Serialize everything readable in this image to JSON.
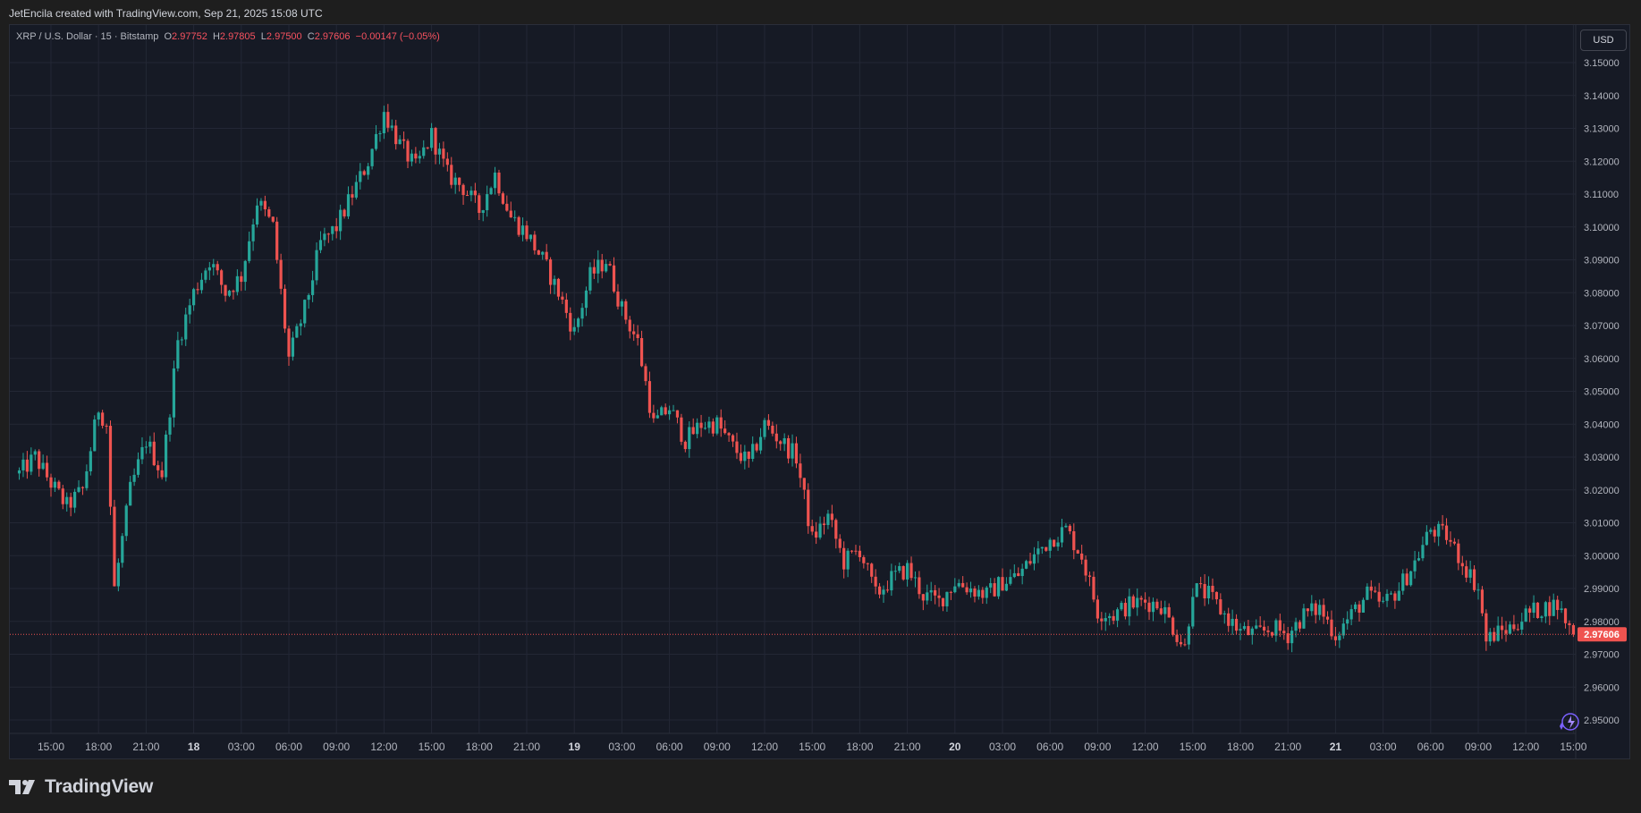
{
  "header": {
    "attribution": "JetEncila created with TradingView.com, Sep 21, 2025 15:08 UTC"
  },
  "legend": {
    "symbol": "XRP / U.S. Dollar · 15 · Bitstamp",
    "o_label": "O",
    "o": "2.97752",
    "h_label": "H",
    "h": "2.97805",
    "l_label": "L",
    "l": "2.97500",
    "c_label": "C",
    "c": "2.97606",
    "change": "−0.00147 (−0.05%)"
  },
  "currency_button": "USD",
  "brand": {
    "name": "TradingView"
  },
  "icons": {
    "logo": "tradingview-logo-icon",
    "assistant": "sparkle-icon"
  },
  "colors": {
    "up": "#26a69a",
    "down": "#ef5350",
    "background": "#161a25",
    "grid": "#232735",
    "axis_text": "#b2b5be",
    "last_price": "#ef5350"
  },
  "chart_data": {
    "type": "candlestick",
    "interval_minutes": 15,
    "y_axis_labels": [
      "3.15000",
      "3.14000",
      "3.13000",
      "3.12000",
      "3.11000",
      "3.10000",
      "3.09000",
      "3.08000",
      "3.07000",
      "3.06000",
      "3.05000",
      "3.04000",
      "3.03000",
      "3.02000",
      "3.01000",
      "3.00000",
      "2.99000",
      "2.98000",
      "2.97000",
      "2.96000",
      "2.95000"
    ],
    "ylim": [
      2.945,
      3.152
    ],
    "x_tick_labels": [
      "15:00",
      "18:00",
      "21:00",
      "18",
      "03:00",
      "06:00",
      "09:00",
      "12:00",
      "15:00",
      "18:00",
      "21:00",
      "19",
      "03:00",
      "06:00",
      "09:00",
      "12:00",
      "15:00",
      "18:00",
      "21:00",
      "20",
      "03:00",
      "06:00",
      "09:00",
      "12:00",
      "15:00",
      "18:00",
      "21:00",
      "21",
      "03:00",
      "06:00",
      "09:00",
      "12:00",
      "15:00"
    ],
    "last_price": "2.97606",
    "grid": true,
    "price_path": [
      [
        "Sep 17 13:00",
        3.025
      ],
      [
        "Sep 17 14:00",
        3.03
      ],
      [
        "Sep 17 15:00",
        3.022
      ],
      [
        "Sep 17 16:00",
        3.015
      ],
      [
        "Sep 17 17:00",
        3.02
      ],
      [
        "Sep 17 18:00",
        3.045
      ],
      [
        "Sep 17 18:30",
        3.04
      ],
      [
        "Sep 17 19:00",
        2.99
      ],
      [
        "Sep 17 20:00",
        3.02
      ],
      [
        "Sep 17 21:00",
        3.035
      ],
      [
        "Sep 17 22:00",
        3.025
      ],
      [
        "Sep 17 23:00",
        3.065
      ],
      [
        "Sep 18 00:00",
        3.08
      ],
      [
        "Sep 18 01:00",
        3.09
      ],
      [
        "Sep 18 02:00",
        3.08
      ],
      [
        "Sep 18 03:00",
        3.085
      ],
      [
        "Sep 18 04:00",
        3.108
      ],
      [
        "Sep 18 05:00",
        3.1
      ],
      [
        "Sep 18 06:00",
        3.06
      ],
      [
        "Sep 18 07:00",
        3.075
      ],
      [
        "Sep 18 08:00",
        3.095
      ],
      [
        "Sep 18 09:00",
        3.1
      ],
      [
        "Sep 18 10:00",
        3.11
      ],
      [
        "Sep 18 11:00",
        3.12
      ],
      [
        "Sep 18 12:00",
        3.135
      ],
      [
        "Sep 18 13:00",
        3.125
      ],
      [
        "Sep 18 14:00",
        3.118
      ],
      [
        "Sep 18 15:00",
        3.128
      ],
      [
        "Sep 18 16:00",
        3.116
      ],
      [
        "Sep 18 17:00",
        3.112
      ],
      [
        "Sep 18 18:00",
        3.105
      ],
      [
        "Sep 18 19:00",
        3.116
      ],
      [
        "Sep 18 20:00",
        3.103
      ],
      [
        "Sep 18 21:00",
        3.098
      ],
      [
        "Sep 18 22:00",
        3.09
      ],
      [
        "Sep 18 23:00",
        3.08
      ],
      [
        "Sep 19 00:00",
        3.068
      ],
      [
        "Sep 19 01:00",
        3.085
      ],
      [
        "Sep 19 02:00",
        3.09
      ],
      [
        "Sep 19 03:00",
        3.075
      ],
      [
        "Sep 19 04:00",
        3.065
      ],
      [
        "Sep 19 05:00",
        3.04
      ],
      [
        "Sep 19 06:00",
        3.045
      ],
      [
        "Sep 19 07:00",
        3.035
      ],
      [
        "Sep 19 08:00",
        3.04
      ],
      [
        "Sep 19 09:00",
        3.04
      ],
      [
        "Sep 19 10:00",
        3.033
      ],
      [
        "Sep 19 11:00",
        3.028
      ],
      [
        "Sep 19 12:00",
        3.04
      ],
      [
        "Sep 19 13:00",
        3.035
      ],
      [
        "Sep 19 14:00",
        3.03
      ],
      [
        "Sep 19 15:00",
        3.005
      ],
      [
        "Sep 19 16:00",
        3.012
      ],
      [
        "Sep 19 17:00",
        2.998
      ],
      [
        "Sep 19 18:00",
        3.002
      ],
      [
        "Sep 19 19:00",
        2.988
      ],
      [
        "Sep 19 20:00",
        2.993
      ],
      [
        "Sep 19 21:00",
        2.996
      ],
      [
        "Sep 19 22:00",
        2.988
      ],
      [
        "Sep 19 23:00",
        2.986
      ],
      [
        "Sep 20 00:00",
        2.992
      ],
      [
        "Sep 20 01:00",
        2.99
      ],
      [
        "Sep 20 02:00",
        2.988
      ],
      [
        "Sep 20 03:00",
        2.992
      ],
      [
        "Sep 20 04:00",
        2.994
      ],
      [
        "Sep 20 05:00",
        3.0
      ],
      [
        "Sep 20 06:00",
        3.005
      ],
      [
        "Sep 20 07:00",
        3.008
      ],
      [
        "Sep 20 08:00",
        3.0
      ],
      [
        "Sep 20 09:00",
        2.983
      ],
      [
        "Sep 20 10:00",
        2.982
      ],
      [
        "Sep 20 11:00",
        2.985
      ],
      [
        "Sep 20 12:00",
        2.986
      ],
      [
        "Sep 20 13:00",
        2.985
      ],
      [
        "Sep 20 14:00",
        2.976
      ],
      [
        "Sep 20 14:30",
        2.972
      ],
      [
        "Sep 20 15:00",
        2.99
      ],
      [
        "Sep 20 16:00",
        2.988
      ],
      [
        "Sep 20 17:00",
        2.982
      ],
      [
        "Sep 20 18:00",
        2.977
      ],
      [
        "Sep 20 19:00",
        2.976
      ],
      [
        "Sep 20 20:00",
        2.978
      ],
      [
        "Sep 20 21:00",
        2.976
      ],
      [
        "Sep 20 22:00",
        2.982
      ],
      [
        "Sep 20 23:00",
        2.984
      ],
      [
        "Sep 21 00:00",
        2.976
      ],
      [
        "Sep 21 01:00",
        2.982
      ],
      [
        "Sep 21 02:00",
        2.988
      ],
      [
        "Sep 21 03:00",
        2.985
      ],
      [
        "Sep 21 04:00",
        2.99
      ],
      [
        "Sep 21 05:00",
        2.998
      ],
      [
        "Sep 21 06:00",
        3.008
      ],
      [
        "Sep 21 07:00",
        3.006
      ],
      [
        "Sep 21 08:00",
        2.998
      ],
      [
        "Sep 21 09:00",
        2.99
      ],
      [
        "Sep 21 09:30",
        2.974
      ],
      [
        "Sep 21 10:00",
        2.976
      ],
      [
        "Sep 21 11:00",
        2.978
      ],
      [
        "Sep 21 12:00",
        2.982
      ],
      [
        "Sep 21 13:00",
        2.984
      ],
      [
        "Sep 21 14:00",
        2.985
      ],
      [
        "Sep 21 15:00",
        2.976
      ]
    ]
  }
}
